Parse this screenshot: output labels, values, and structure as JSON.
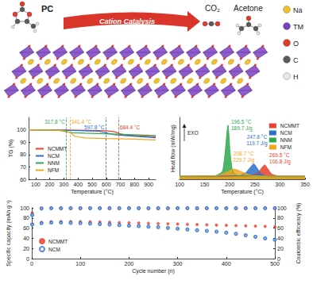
{
  "schematic": {
    "reactant": "PC",
    "arrow_label": "Cation Catalysis",
    "products": [
      "CO₂",
      "Acetone"
    ],
    "legend": [
      {
        "label": "Na",
        "color": "#f2c12e"
      },
      {
        "label": "TM",
        "color": "#7a3fc2"
      },
      {
        "label": "O",
        "color": "#e03a2a"
      },
      {
        "label": "C",
        "color": "#5a5a5a"
      },
      {
        "label": "H",
        "color": "#e6e6e6"
      }
    ]
  },
  "chart_data": [
    {
      "type": "line",
      "xlabel": "Temperature (°C)",
      "ylabel": "TG (%)",
      "xlim": [
        50,
        950
      ],
      "xticks": [
        100,
        200,
        300,
        400,
        500,
        600,
        700,
        800,
        900
      ],
      "ylim": [
        60,
        110
      ],
      "yticks": [
        60,
        70,
        80,
        90,
        100
      ],
      "grid": false,
      "legend": "lower left",
      "series": [
        {
          "name": "NCMMT",
          "color": "#e8412c",
          "x": [
            50,
            200,
            400,
            600,
            660,
            700,
            750,
            850,
            950
          ],
          "values": [
            100,
            99.8,
            99.6,
            99.2,
            98.4,
            96.6,
            95.6,
            95,
            94.4
          ]
        },
        {
          "name": "NCM",
          "color": "#2d6fc9",
          "x": [
            50,
            200,
            400,
            550,
            597.8,
            650,
            750,
            850,
            950
          ],
          "values": [
            100,
            99.8,
            99.4,
            98.8,
            97.6,
            96.2,
            95.2,
            94.4,
            93.6
          ]
        },
        {
          "name": "NNM",
          "color": "#2ea84a",
          "x": [
            50,
            200,
            280,
            317.8,
            360,
            450,
            600,
            750,
            950
          ],
          "values": [
            100,
            99.8,
            99.3,
            98.4,
            97.6,
            97.2,
            96.8,
            96.2,
            95.4
          ]
        },
        {
          "name": "NFM",
          "color": "#f3a51c",
          "x": [
            50,
            200,
            300,
            341.4,
            380,
            450,
            600,
            800,
            950
          ],
          "values": [
            100,
            99.8,
            99.2,
            97.8,
            94.6,
            93.4,
            92.9,
            92.4,
            91.8
          ]
        }
      ],
      "annotations": [
        {
          "text": "317.8 °C",
          "x": 317.8,
          "series": "NNM"
        },
        {
          "text": "341.4 °C",
          "x": 341.4,
          "series": "NFM"
        },
        {
          "text": "597.8 °C",
          "x": 597.8,
          "series": "NCM"
        },
        {
          "text": "684.4 °C",
          "x": 684.4,
          "series": "NCMMT"
        }
      ]
    },
    {
      "type": "area",
      "xlabel": "Temperature (°C)",
      "ylabel": "Heat flow (mW/mg)",
      "xlim": [
        100,
        350
      ],
      "xticks": [
        100,
        150,
        200,
        250,
        300,
        350
      ],
      "ylim": [
        0,
        12
      ],
      "tick_labels": "x",
      "grid": false,
      "legend": "upper right",
      "series": [
        {
          "name": "NCMMT",
          "color": "#e8412c",
          "x": [
            100,
            240,
            255,
            262,
            269.5,
            276,
            284,
            300,
            350
          ],
          "values": [
            0.6,
            0.7,
            1.2,
            2.0,
            2.8,
            2.0,
            1.0,
            0.6,
            0.6
          ]
        },
        {
          "name": "NCM",
          "color": "#2d6fc9",
          "x": [
            100,
            220,
            232,
            240,
            247.8,
            255,
            263,
            280,
            350
          ],
          "values": [
            0.6,
            0.7,
            1.3,
            2.2,
            3.0,
            2.1,
            1.0,
            0.6,
            0.6
          ]
        },
        {
          "name": "NNM",
          "color": "#2ea84a",
          "x": [
            100,
            170,
            185,
            190,
            196.5,
            201,
            206,
            215,
            350
          ],
          "values": [
            0.6,
            0.7,
            1.5,
            4.5,
            10.5,
            5.0,
            1.5,
            0.7,
            0.6
          ]
        },
        {
          "name": "NFM",
          "color": "#f3a51c",
          "x": [
            100,
            175,
            190,
            200,
            208.7,
            218,
            230,
            245,
            350
          ],
          "values": [
            0.6,
            0.7,
            1.2,
            1.7,
            2.0,
            1.7,
            1.2,
            0.7,
            0.6
          ]
        }
      ],
      "annotations": [
        {
          "text": "EXO"
        },
        {
          "text": [
            "196.5 °C",
            "189.7 J/g"
          ],
          "x": 196.5,
          "series": "NNM"
        },
        {
          "text": [
            "208.7 °C",
            "229.7 J/g"
          ],
          "x": 208.7,
          "series": "NFM"
        },
        {
          "text": [
            "247.8 °C",
            "119.7 J/g"
          ],
          "x": 247.8,
          "series": "NCM"
        },
        {
          "text": [
            "269.5 °C",
            "106.8 J/g"
          ],
          "x": 269.5,
          "series": "NCMMT"
        }
      ]
    },
    {
      "type": "scatter",
      "xlabel": "Cycle number (n)",
      "ylabel": "Specific capacity (mAh g⁻¹)",
      "y2label": "Coulombic efficiency (%)",
      "x": [
        1,
        20,
        40,
        60,
        80,
        100,
        120,
        140,
        160,
        180,
        200,
        220,
        240,
        260,
        280,
        300,
        320,
        340,
        360,
        380,
        400,
        420,
        440,
        460,
        480,
        500
      ],
      "xlim": [
        0,
        500
      ],
      "xticks": [
        0,
        100,
        200,
        300,
        400,
        500
      ],
      "ylim": [
        0,
        100
      ],
      "yticks": [
        0,
        20,
        40,
        60,
        80,
        100
      ],
      "y2lim": [
        0,
        100
      ],
      "y2ticks": [
        0,
        20,
        40,
        60,
        80,
        100
      ],
      "grid": false,
      "legend": "lower left",
      "series": [
        {
          "name": "NCMMT",
          "color": "#e8412c",
          "marker": "circle",
          "values": [
            68,
            71,
            72.5,
            73,
            73,
            72.8,
            72.5,
            72,
            71.5,
            71,
            70.5,
            70,
            69.5,
            69,
            68.5,
            68,
            67.5,
            67,
            66.5,
            66,
            65.5,
            65,
            64.5,
            64,
            63.5,
            62.5
          ]
        },
        {
          "name": "NCM",
          "color": "#2d6fc9",
          "marker": "hollow_circle",
          "values": [
            67,
            70,
            71,
            71,
            70.5,
            70,
            69,
            68,
            67,
            66,
            65,
            64,
            63,
            62,
            60.5,
            59,
            57.5,
            56,
            54.5,
            53,
            51,
            49,
            46,
            43,
            40,
            37
          ]
        },
        {
          "name": "NCMMT",
          "color": "#e8412c",
          "marker": "circle",
          "axis": "y2",
          "values": [
            90,
            99.2,
            99.5,
            99.5,
            99.5,
            99.5,
            99.5,
            99.5,
            99.5,
            99.5,
            99.5,
            99.5,
            99.5,
            99.5,
            99.5,
            99.5,
            99.5,
            99.5,
            99.5,
            99.5,
            99.5,
            99.5,
            99.5,
            99.5,
            99.5,
            99.5
          ]
        },
        {
          "name": "NCM",
          "color": "#2d6fc9",
          "marker": "hollow_circle",
          "axis": "y2",
          "values": [
            86,
            98.8,
            99.3,
            99.3,
            99.3,
            99.3,
            99.3,
            99.3,
            99.3,
            99.3,
            99.3,
            99.3,
            99.3,
            99.3,
            99.3,
            99.3,
            99.3,
            99.3,
            99.3,
            99.3,
            99.3,
            99.3,
            99.3,
            99.3,
            99.3,
            99.3
          ]
        }
      ]
    }
  ]
}
